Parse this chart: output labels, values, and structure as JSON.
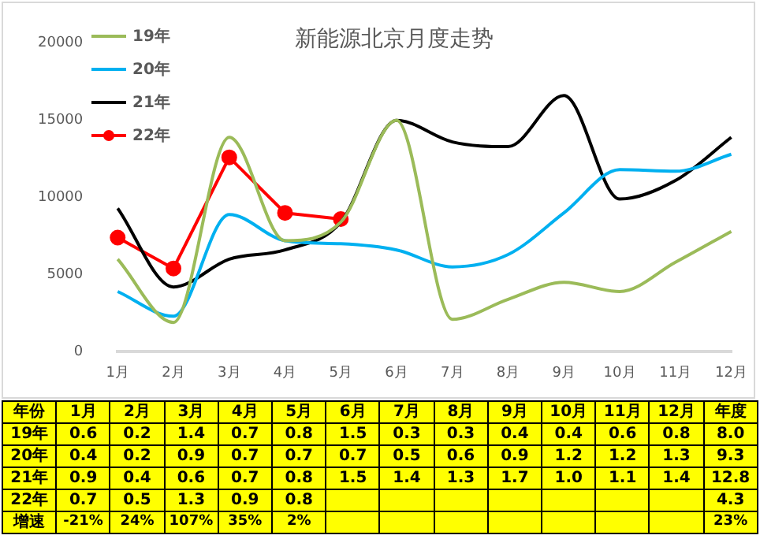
{
  "chart_data": {
    "type": "line",
    "title": "新能源北京月度走势",
    "categories": [
      "1月",
      "2月",
      "3月",
      "4月",
      "5月",
      "6月",
      "7月",
      "8月",
      "9月",
      "10月",
      "11月",
      "12月"
    ],
    "series": [
      {
        "name": "19年",
        "color": "#9bbb59",
        "marker": "none",
        "values": [
          6000,
          1900,
          13900,
          7200,
          8400,
          15000,
          2100,
          3400,
          4500,
          3900,
          5800,
          7800
        ]
      },
      {
        "name": "20年",
        "color": "#00b0f0",
        "marker": "none",
        "values": [
          3900,
          2300,
          8900,
          7200,
          7000,
          6600,
          5500,
          6300,
          9000,
          11800,
          11700,
          12800
        ]
      },
      {
        "name": "21年",
        "color": "#000000",
        "marker": "none",
        "values": [
          9300,
          4200,
          6000,
          6600,
          8400,
          15000,
          13600,
          13300,
          16600,
          9900,
          11100,
          13900
        ]
      },
      {
        "name": "22年",
        "color": "#ff0000",
        "marker": "circle",
        "values": [
          7400,
          5400,
          12600,
          9000,
          8600,
          null,
          null,
          null,
          null,
          null,
          null,
          null
        ]
      }
    ],
    "annotations": [
      "年份",
      "年度",
      "0.6",
      "0.2",
      "1.4",
      "0.7",
      "0.8",
      "1.5",
      "0.3",
      "0.3",
      "0.4",
      "0.4",
      "0.6",
      "0.8",
      "8.0",
      "0.4",
      "0.2",
      "0.9",
      "0.7",
      "0.7",
      "0.7",
      "0.5",
      "0.6",
      "0.9",
      "1.2",
      "1.2",
      "1.3",
      "9.3",
      "0.9",
      "0.4",
      "0.6",
      "0.7",
      "0.8",
      "1.5",
      "1.4",
      "1.3",
      "1.7",
      "1.0",
      "1.1",
      "1.4",
      "12.8",
      "0.7",
      "0.5",
      "1.3",
      "0.9",
      "0.8",
      "4.3",
      "增速",
      "-21%",
      "24%",
      "107%",
      "35%",
      "2%",
      "23%"
    ],
    "ylim": [
      0,
      20000
    ],
    "yticks": [
      0,
      5000,
      10000,
      15000,
      20000
    ],
    "grid": false,
    "legend": "top left"
  }
}
